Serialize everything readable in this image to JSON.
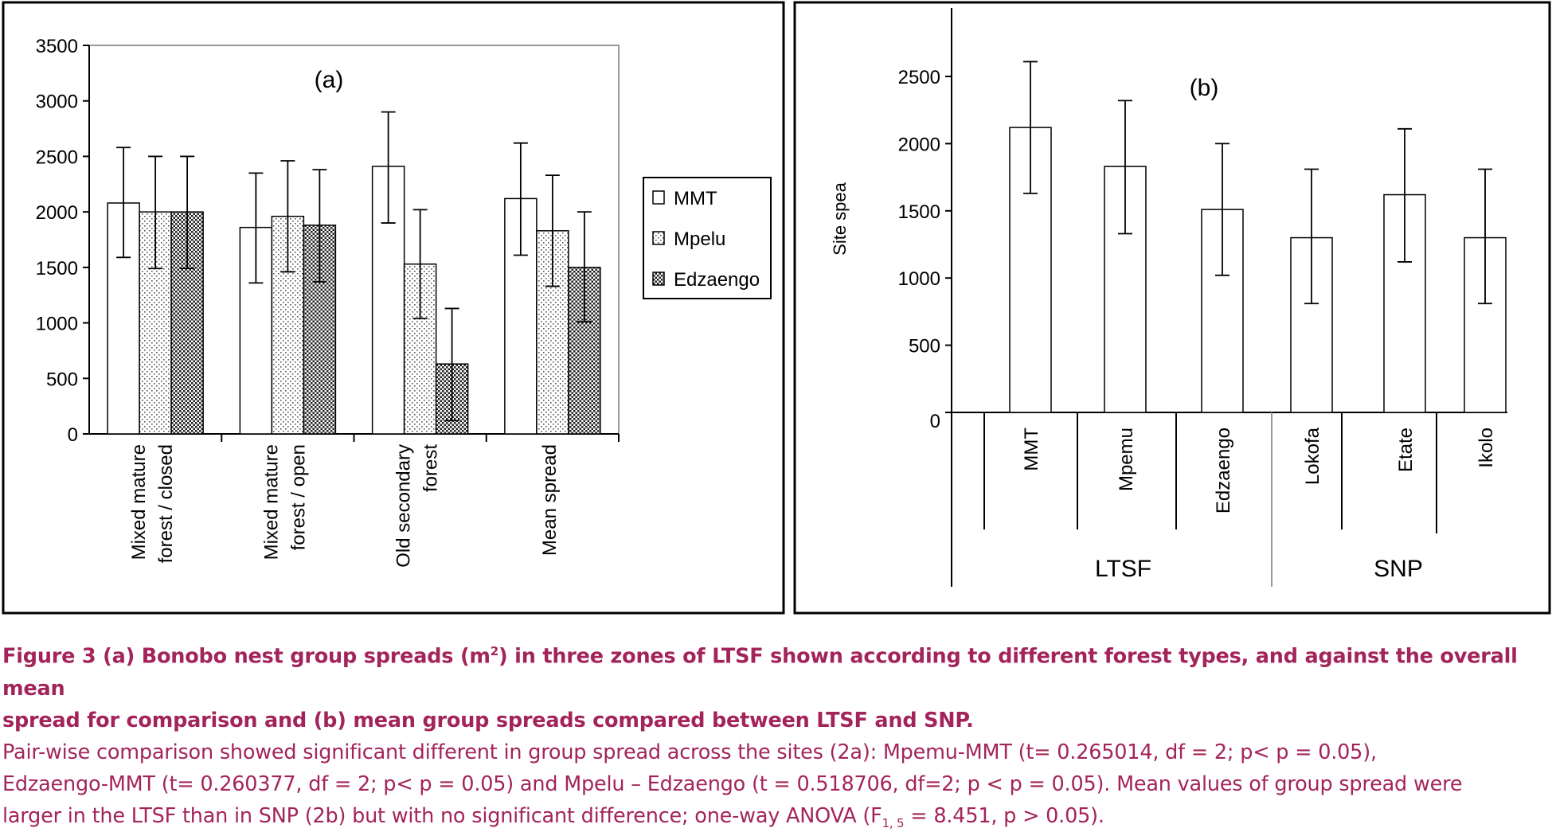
{
  "chart_data": [
    {
      "type": "bar",
      "panel_label": "(a)",
      "ylim": [
        0,
        3500
      ],
      "yticks": [
        "0",
        "500",
        "1000",
        "1500",
        "2000",
        "2500",
        "3000",
        "3500"
      ],
      "categories": [
        [
          "Mixed mature",
          "forest / closed"
        ],
        [
          "Mixed mature",
          "forest / open"
        ],
        [
          "Old secondary",
          "forest"
        ],
        [
          "Mean spread"
        ]
      ],
      "series": [
        {
          "name": "MMT",
          "pattern": "plain",
          "values": [
            2080,
            1860,
            2410,
            2120
          ],
          "err_high": [
            2580,
            2350,
            2900,
            2620
          ],
          "err_low": [
            1590,
            1360,
            1900,
            1610
          ]
        },
        {
          "name": "Mpelu",
          "pattern": "dots",
          "values": [
            2000,
            1960,
            1530,
            1830
          ],
          "err_high": [
            2500,
            2460,
            2020,
            2330
          ],
          "err_low": [
            1490,
            1460,
            1040,
            1330
          ]
        },
        {
          "name": "Edzaengo",
          "pattern": "crosshatch",
          "values": [
            2000,
            1880,
            630,
            1500
          ],
          "err_high": [
            2500,
            2380,
            1130,
            2000
          ],
          "err_low": [
            1490,
            1370,
            120,
            1010
          ]
        }
      ],
      "grid": false,
      "legend": "right"
    },
    {
      "type": "bar",
      "panel_label": "(b)",
      "ylabel": "Site spea",
      "ylim": [
        0,
        2900
      ],
      "yticks": [
        "0",
        "500",
        "1000",
        "1500",
        "2000",
        "2500"
      ],
      "categories": [
        "MMT",
        "Mpemu",
        "Edzaengo",
        "Lokofa",
        "Etate",
        "Ikolo"
      ],
      "values": [
        2120,
        1830,
        1510,
        1300,
        1620,
        1300
      ],
      "err_high": [
        2610,
        2320,
        2000,
        1810,
        2110,
        1810
      ],
      "err_low": [
        1630,
        1330,
        1020,
        810,
        1120,
        810
      ],
      "groups": [
        {
          "label": "LTSF",
          "span": [
            0,
            2
          ]
        },
        {
          "label": "SNP",
          "span": [
            3,
            5
          ]
        }
      ],
      "grid": false
    }
  ],
  "caption": {
    "title_1": "Figure 3 (a) Bonobo nest group spreads (m",
    "title_sup": "2",
    "title_2": ") in three zones of LTSF shown according to different forest types, and against the overall mean",
    "title_3": "spread for comparison and (b) mean group spreads compared between LTSF and SNP.",
    "body_1": "Pair-wise comparison showed significant different in group spread across the sites (2a): Mpemu-MMT (t= 0.265014, df = 2; p< p = 0.05),",
    "body_2": "Edzaengo-MMT (t= 0.260377, df = 2; p< p = 0.05) and Mpelu – Edzaengo (t = 0.518706, df=2; p < p = 0.05). Mean values of group spread were",
    "body_3a": "larger in the LTSF than in SNP (2b) but with no significant difference; one-way ANOVA (F",
    "body_sub": "1, 5",
    "body_3b": " = 8.451, p > 0.05)."
  }
}
